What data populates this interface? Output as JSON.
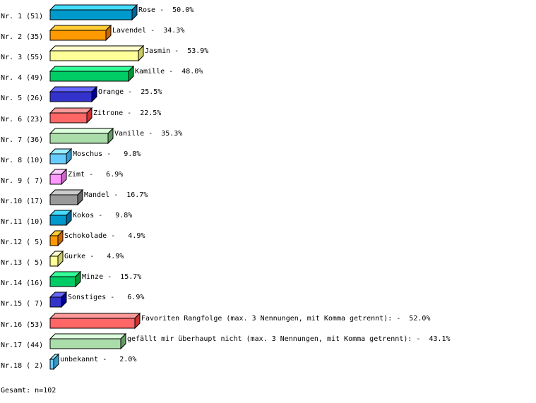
{
  "chart_data": {
    "type": "bar",
    "orientation": "horizontal",
    "style": "3d",
    "categories": [
      "Rose",
      "Lavendel",
      "Jasmin",
      "Kamille",
      "Orange",
      "Zitrone",
      "Vanille",
      "Moschus",
      "Zimt",
      "Mandel",
      "Kokos",
      "Schokolade",
      "Gurke",
      "Minze",
      "Sonstiges",
      "Favoriten Rangfolge (max. 3 Nennungen, mit Komma getrennt):",
      "gefällt mir überhaupt nicht (max. 3 Nennungen, mit Komma getrennt):",
      "unbekannt"
    ],
    "row_labels": [
      "Nr. 1 (51)",
      "Nr. 2 (35)",
      "Nr. 3 (55)",
      "Nr. 4 (49)",
      "Nr. 5 (26)",
      "Nr. 6 (23)",
      "Nr. 7 (36)",
      "Nr. 8 (10)",
      "Nr. 9 ( 7)",
      "Nr.10 (17)",
      "Nr.11 (10)",
      "Nr.12 ( 5)",
      "Nr.13 ( 5)",
      "Nr.14 (16)",
      "Nr.15 ( 7)",
      "Nr.16 (53)",
      "Nr.17 (44)",
      "Nr.18 ( 2)"
    ],
    "counts": [
      51,
      35,
      55,
      49,
      26,
      23,
      36,
      10,
      7,
      17,
      10,
      5,
      5,
      16,
      7,
      53,
      44,
      2
    ],
    "percent_labels": [
      "50.0%",
      "34.3%",
      "53.9%",
      "48.0%",
      "25.5%",
      "22.5%",
      "35.3%",
      "9.8%",
      "6.9%",
      "16.7%",
      "9.8%",
      "4.9%",
      "4.9%",
      "15.7%",
      "6.9%",
      "52.0%",
      "43.1%",
      "2.0%"
    ],
    "colors": [
      {
        "front": "#0099cc",
        "top": "#44ddff",
        "side": "#006699"
      },
      {
        "front": "#ff9900",
        "top": "#ffcc33",
        "side": "#cc6600"
      },
      {
        "front": "#ffff99",
        "top": "#ffffcc",
        "side": "#cccc66"
      },
      {
        "front": "#00cc66",
        "top": "#33ff99",
        "side": "#009933"
      },
      {
        "front": "#3333cc",
        "top": "#6666ff",
        "side": "#000099"
      },
      {
        "front": "#ff6666",
        "top": "#ff9999",
        "side": "#cc3333"
      },
      {
        "front": "#aaddaa",
        "top": "#ddffdd",
        "side": "#669966"
      },
      {
        "front": "#66ccff",
        "top": "#99eeff",
        "side": "#3399cc"
      },
      {
        "front": "#ff99ff",
        "top": "#ffccff",
        "side": "#cc66cc"
      },
      {
        "front": "#999999",
        "top": "#cccccc",
        "side": "#666666"
      }
    ],
    "total_label": "Gesamt: n=102"
  }
}
